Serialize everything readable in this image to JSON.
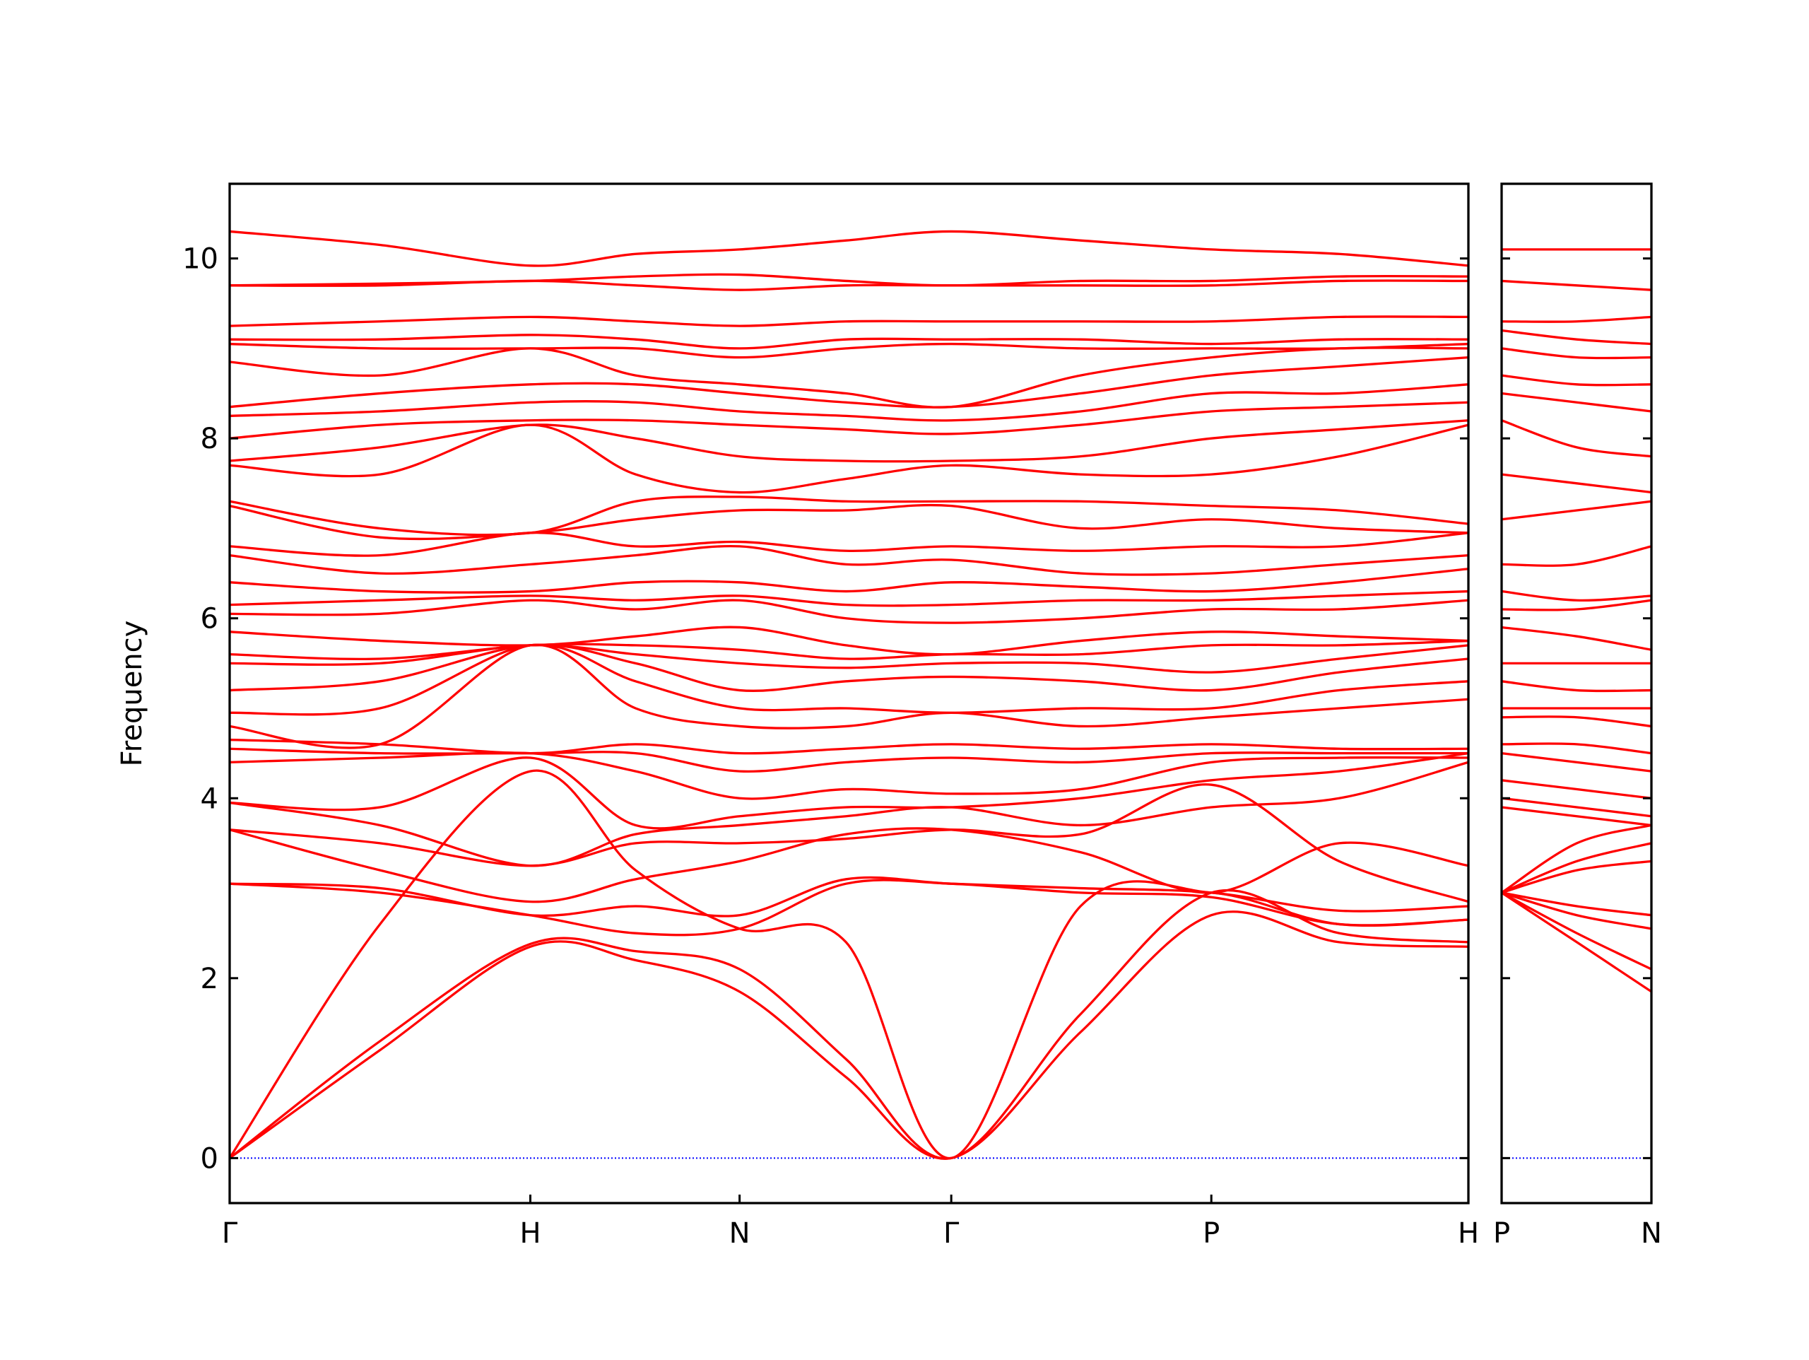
{
  "chart_data": [
    {
      "type": "line",
      "ylabel": "Frequency",
      "color": "#ff0000",
      "zero_line_color": "#0000ff",
      "xlim": [
        0,
        4.12
      ],
      "ylim": [
        -0.5,
        10.83
      ],
      "xticks": [
        {
          "value": 0,
          "label": "Γ"
        },
        {
          "value": 1.0,
          "label": "H"
        },
        {
          "value": 1.696,
          "label": "N"
        },
        {
          "value": 2.4,
          "label": "Γ"
        },
        {
          "value": 3.265,
          "label": "P"
        },
        {
          "value": 4.12,
          "label": "H"
        }
      ],
      "yticks": [
        0,
        2,
        4,
        6,
        8,
        10
      ],
      "ytick_labels": true,
      "x": [
        0,
        0.5,
        1.0,
        1.35,
        1.696,
        2.05,
        2.4,
        2.83,
        3.265,
        3.69,
        4.12
      ],
      "series": [
        {
          "values": [
            0,
            1.2,
            2.35,
            2.2,
            1.85,
            0.9,
            0,
            1.4,
            2.7,
            2.4,
            2.35
          ]
        },
        {
          "values": [
            0,
            1.3,
            2.38,
            2.3,
            2.1,
            1.1,
            0,
            1.6,
            2.95,
            2.5,
            2.4
          ]
        },
        {
          "values": [
            0,
            2.6,
            4.3,
            3.2,
            2.55,
            2.4,
            0,
            2.8,
            2.95,
            2.6,
            2.65
          ]
        },
        {
          "values": [
            3.05,
            2.95,
            2.7,
            2.5,
            2.55,
            3.05,
            3.05,
            2.95,
            2.9,
            2.6,
            2.65
          ]
        },
        {
          "values": [
            3.05,
            3.0,
            2.7,
            2.8,
            2.7,
            3.1,
            3.05,
            3.0,
            2.95,
            2.75,
            2.8
          ]
        },
        {
          "values": [
            3.65,
            3.2,
            2.85,
            3.1,
            3.3,
            3.6,
            3.65,
            3.4,
            2.95,
            3.5,
            3.25
          ]
        },
        {
          "values": [
            3.65,
            3.5,
            3.25,
            3.5,
            3.5,
            3.55,
            3.65,
            3.6,
            4.15,
            3.3,
            2.85
          ]
        },
        {
          "values": [
            3.95,
            3.7,
            3.25,
            3.6,
            3.7,
            3.8,
            3.9,
            3.7,
            3.9,
            4.0,
            4.4
          ]
        },
        {
          "values": [
            3.95,
            3.9,
            4.45,
            3.7,
            3.8,
            3.9,
            3.9,
            4.0,
            4.2,
            4.3,
            4.5
          ]
        },
        {
          "values": [
            4.4,
            4.45,
            4.5,
            4.3,
            4.0,
            4.1,
            4.05,
            4.1,
            4.4,
            4.45,
            4.45
          ]
        },
        {
          "values": [
            4.55,
            4.5,
            4.5,
            4.5,
            4.3,
            4.4,
            4.45,
            4.4,
            4.5,
            4.5,
            4.5
          ]
        },
        {
          "values": [
            4.65,
            4.6,
            4.5,
            4.6,
            4.5,
            4.55,
            4.6,
            4.55,
            4.6,
            4.55,
            4.55
          ]
        },
        {
          "values": [
            4.8,
            4.6,
            5.7,
            5.0,
            4.8,
            4.8,
            4.95,
            4.8,
            4.9,
            5.0,
            5.1
          ]
        },
        {
          "values": [
            4.95,
            5.0,
            5.7,
            5.3,
            5.0,
            5.0,
            4.95,
            5.0,
            5.0,
            5.2,
            5.3
          ]
        },
        {
          "values": [
            5.2,
            5.3,
            5.7,
            5.5,
            5.2,
            5.3,
            5.35,
            5.3,
            5.2,
            5.4,
            5.55
          ]
        },
        {
          "values": [
            5.5,
            5.5,
            5.7,
            5.6,
            5.5,
            5.45,
            5.5,
            5.5,
            5.4,
            5.55,
            5.7
          ]
        },
        {
          "values": [
            5.6,
            5.55,
            5.7,
            5.7,
            5.65,
            5.55,
            5.6,
            5.6,
            5.7,
            5.7,
            5.75
          ]
        },
        {
          "values": [
            5.85,
            5.75,
            5.7,
            5.8,
            5.9,
            5.7,
            5.6,
            5.75,
            5.85,
            5.8,
            5.75
          ]
        },
        {
          "values": [
            6.05,
            6.05,
            6.2,
            6.1,
            6.2,
            6.0,
            5.95,
            6.0,
            6.1,
            6.1,
            6.2
          ]
        },
        {
          "values": [
            6.15,
            6.2,
            6.25,
            6.2,
            6.25,
            6.15,
            6.15,
            6.2,
            6.2,
            6.25,
            6.3
          ]
        },
        {
          "values": [
            6.4,
            6.3,
            6.3,
            6.4,
            6.4,
            6.3,
            6.4,
            6.35,
            6.3,
            6.4,
            6.55
          ]
        },
        {
          "values": [
            6.7,
            6.5,
            6.6,
            6.7,
            6.8,
            6.6,
            6.65,
            6.5,
            6.5,
            6.6,
            6.7
          ]
        },
        {
          "values": [
            6.8,
            6.7,
            6.95,
            6.8,
            6.85,
            6.75,
            6.8,
            6.75,
            6.8,
            6.8,
            6.95
          ]
        },
        {
          "values": [
            7.25,
            6.9,
            6.95,
            7.1,
            7.2,
            7.2,
            7.25,
            7.0,
            7.1,
            7.0,
            6.95
          ]
        },
        {
          "values": [
            7.3,
            7.0,
            6.95,
            7.3,
            7.35,
            7.3,
            7.3,
            7.3,
            7.25,
            7.2,
            7.05
          ]
        },
        {
          "values": [
            7.7,
            7.6,
            8.15,
            7.6,
            7.4,
            7.55,
            7.7,
            7.6,
            7.6,
            7.8,
            8.15
          ]
        },
        {
          "values": [
            7.75,
            7.9,
            8.15,
            8.0,
            7.8,
            7.75,
            7.75,
            7.8,
            8.0,
            8.1,
            8.2
          ]
        },
        {
          "values": [
            8.0,
            8.15,
            8.2,
            8.2,
            8.15,
            8.1,
            8.05,
            8.15,
            8.3,
            8.35,
            8.4
          ]
        },
        {
          "values": [
            8.25,
            8.3,
            8.4,
            8.4,
            8.3,
            8.25,
            8.2,
            8.3,
            8.5,
            8.5,
            8.6
          ]
        },
        {
          "values": [
            8.35,
            8.5,
            8.6,
            8.6,
            8.5,
            8.4,
            8.35,
            8.5,
            8.7,
            8.8,
            8.9
          ]
        },
        {
          "values": [
            8.85,
            8.7,
            9.0,
            8.7,
            8.6,
            8.5,
            8.35,
            8.7,
            8.9,
            9.0,
            9.0
          ]
        },
        {
          "values": [
            9.05,
            9.0,
            9.0,
            9.0,
            8.9,
            9.0,
            9.05,
            9.0,
            9.0,
            9.0,
            9.05
          ]
        },
        {
          "values": [
            9.1,
            9.1,
            9.15,
            9.1,
            9.0,
            9.1,
            9.1,
            9.1,
            9.05,
            9.1,
            9.1
          ]
        },
        {
          "values": [
            9.25,
            9.3,
            9.35,
            9.3,
            9.25,
            9.3,
            9.3,
            9.3,
            9.3,
            9.35,
            9.35
          ]
        },
        {
          "values": [
            9.7,
            9.7,
            9.75,
            9.7,
            9.65,
            9.7,
            9.7,
            9.7,
            9.7,
            9.75,
            9.75
          ]
        },
        {
          "values": [
            9.7,
            9.72,
            9.75,
            9.8,
            9.82,
            9.75,
            9.7,
            9.75,
            9.75,
            9.8,
            9.8
          ]
        },
        {
          "values": [
            10.3,
            10.15,
            9.92,
            10.05,
            10.1,
            10.2,
            10.3,
            10.2,
            10.1,
            10.05,
            9.92
          ]
        }
      ]
    },
    {
      "type": "line",
      "color": "#ff0000",
      "zero_line_color": "#0000ff",
      "xlim": [
        0,
        0.498
      ],
      "ylim": [
        -0.5,
        10.83
      ],
      "xticks": [
        {
          "value": 0,
          "label": "P"
        },
        {
          "value": 0.498,
          "label": "N"
        }
      ],
      "yticks": [
        0,
        2,
        4,
        6,
        8,
        10
      ],
      "ytick_labels": false,
      "x": [
        0,
        0.25,
        0.498
      ],
      "series": [
        {
          "values": [
            2.95,
            2.4,
            1.85
          ]
        },
        {
          "values": [
            2.95,
            2.5,
            2.1
          ]
        },
        {
          "values": [
            2.95,
            2.7,
            2.55
          ]
        },
        {
          "values": [
            2.95,
            2.8,
            2.7
          ]
        },
        {
          "values": [
            2.95,
            3.2,
            3.3
          ]
        },
        {
          "values": [
            2.95,
            3.3,
            3.5
          ]
        },
        {
          "values": [
            2.95,
            3.5,
            3.7
          ]
        },
        {
          "values": [
            3.9,
            3.8,
            3.7
          ]
        },
        {
          "values": [
            4.0,
            3.9,
            3.8
          ]
        },
        {
          "values": [
            4.2,
            4.1,
            4.0
          ]
        },
        {
          "values": [
            4.5,
            4.4,
            4.3
          ]
        },
        {
          "values": [
            4.6,
            4.6,
            4.5
          ]
        },
        {
          "values": [
            4.9,
            4.9,
            4.8
          ]
        },
        {
          "values": [
            5.0,
            5.0,
            5.0
          ]
        },
        {
          "values": [
            5.3,
            5.2,
            5.2
          ]
        },
        {
          "values": [
            5.5,
            5.5,
            5.5
          ]
        },
        {
          "values": [
            5.9,
            5.8,
            5.65
          ]
        },
        {
          "values": [
            6.1,
            6.1,
            6.2
          ]
        },
        {
          "values": [
            6.3,
            6.2,
            6.25
          ]
        },
        {
          "values": [
            6.6,
            6.6,
            6.8
          ]
        },
        {
          "values": [
            7.1,
            7.2,
            7.3
          ]
        },
        {
          "values": [
            7.6,
            7.5,
            7.4
          ]
        },
        {
          "values": [
            8.2,
            7.9,
            7.8
          ]
        },
        {
          "values": [
            8.5,
            8.4,
            8.3
          ]
        },
        {
          "values": [
            8.7,
            8.6,
            8.6
          ]
        },
        {
          "values": [
            9.0,
            8.9,
            8.9
          ]
        },
        {
          "values": [
            9.2,
            9.1,
            9.05
          ]
        },
        {
          "values": [
            9.3,
            9.3,
            9.35
          ]
        },
        {
          "values": [
            9.75,
            9.7,
            9.65
          ]
        },
        {
          "values": [
            10.1,
            10.1,
            10.1
          ]
        }
      ]
    }
  ]
}
